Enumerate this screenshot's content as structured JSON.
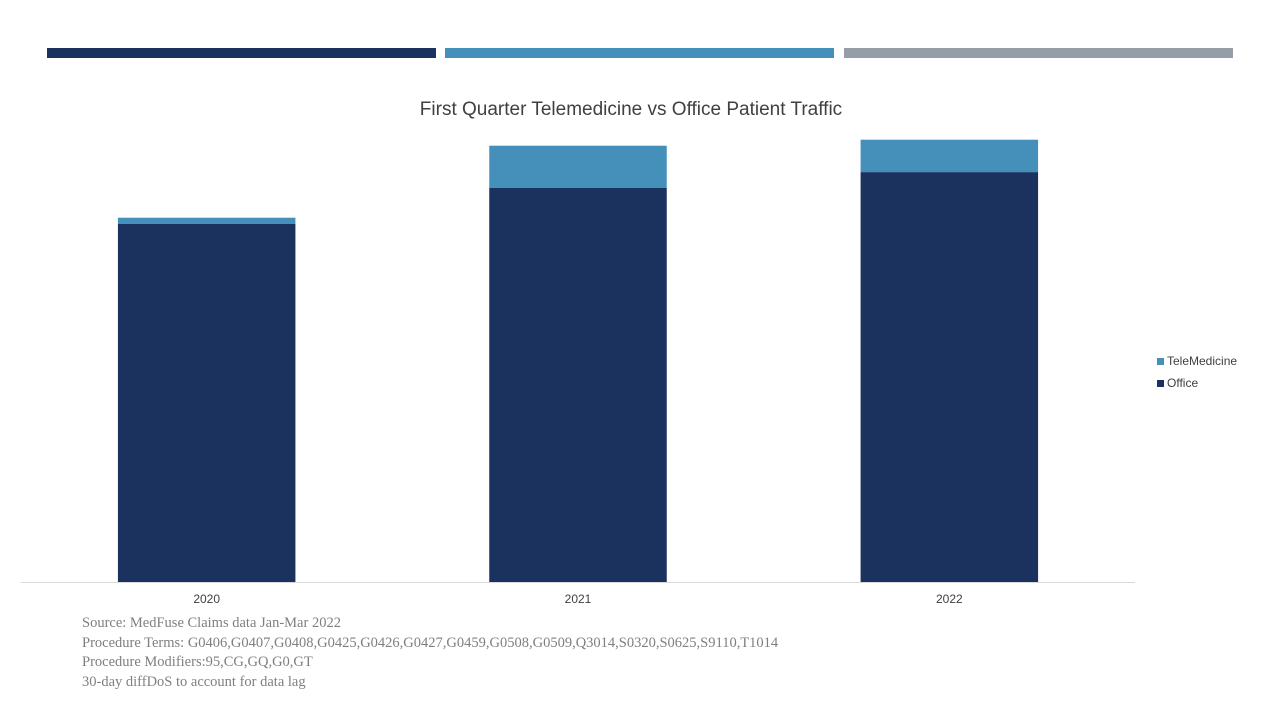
{
  "colors": {
    "office": "#1b325f",
    "telemedicine": "#4590bb",
    "accent_dark": "#1b325f",
    "accent_mid": "#4590bb",
    "accent_gray": "#959ea6",
    "axis": "#d9d9d9"
  },
  "chart_data": {
    "type": "bar",
    "stacked": true,
    "title": "First Quarter Telemedicine vs Office Patient Traffic",
    "categories": [
      "2020",
      "2021",
      "2022"
    ],
    "series": [
      {
        "name": "Office",
        "values": [
          299,
          329,
          342
        ]
      },
      {
        "name": "TeleMedicine",
        "values": [
          5,
          35,
          27
        ]
      }
    ],
    "ylim": [
      0,
      400
    ],
    "grid": false,
    "y_axis_visible": false,
    "legend": "right"
  },
  "notes": [
    "Source: MedFuse Claims data Jan-Mar 2022",
    "Procedure Terms: G0406,G0407,G0408,G0425,G0426,G0427,G0459,G0508,G0509,Q3014,S0320,S0625,S9110,T1014",
    "Procedure Modifiers:95,CG,GQ,G0,GT",
    "30-day diffDoS to account for data lag"
  ]
}
